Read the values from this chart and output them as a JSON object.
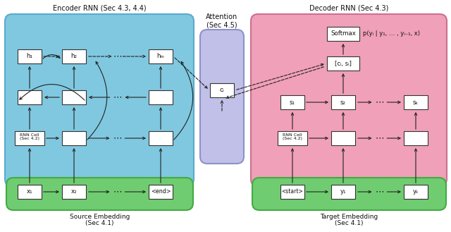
{
  "fig_width": 6.4,
  "fig_height": 3.29,
  "dpi": 100,
  "bg_color": "#ffffff",
  "encoder_bg": "#80c8e0",
  "decoder_bg": "#f0a0b8",
  "attention_bg": "#c0c0e8",
  "source_emb_bg": "#70cc70",
  "target_emb_bg": "#70cc70",
  "title_encoder": "Encoder RNN (Sec 4.3, 4.4)",
  "title_decoder": "Decoder RNN (Sec 4.3)",
  "title_attention": "Attention\n(Sec 4.5)",
  "title_source": "Source Embedding\n(Sec 4.1)",
  "title_target": "Target Embedding\n(Sec 4.1)",
  "softmax_label": "Softmax",
  "ci_label": "cᵢ",
  "ci_si_label": "[cᵢ, sᵢ]",
  "rnn_cell_label": "RNN Cell\n(Sec 4.2)",
  "h1_label": "h₁",
  "h2_label": "h₂",
  "hm_label": "hₘ",
  "s1_label": "s₁",
  "s2_label": "s₂",
  "sk_label": "sₖ",
  "x1_label": "x₁",
  "x2_label": "x₂",
  "xend_label": "<end>",
  "xstart_label": "<start>",
  "y1_label": "y₁",
  "yk_label": "yₖ",
  "prob_label": "p(yᵢ | y₁, … , yᵢ₋₁, x)",
  "dots": "⋯"
}
